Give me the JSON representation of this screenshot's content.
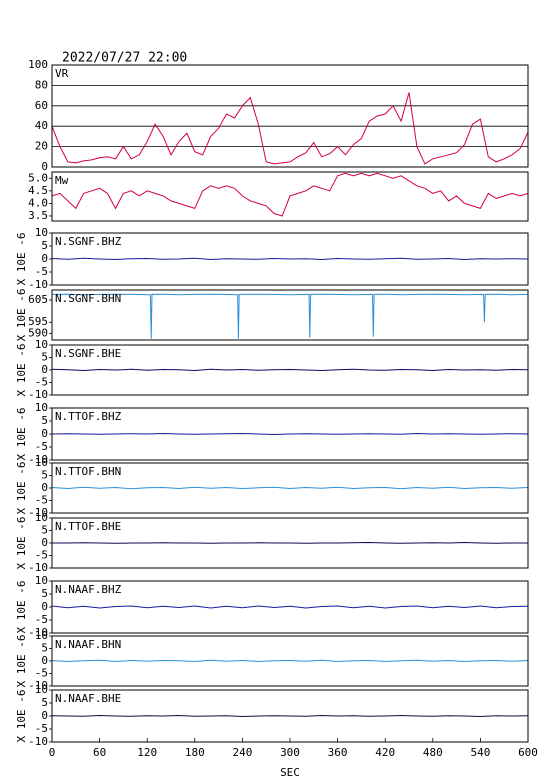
{
  "heading": "2022/07/27 22:00",
  "chart_data": [
    {
      "type": "line",
      "title": "VR",
      "xlim": [
        0,
        600
      ],
      "ylim": [
        0,
        100
      ],
      "yticks": [
        0,
        20,
        40,
        60,
        80,
        100
      ],
      "grid": true,
      "x": [
        0,
        10,
        20,
        30,
        40,
        50,
        60,
        70,
        80,
        90,
        100,
        110,
        120,
        130,
        140,
        150,
        160,
        170,
        180,
        190,
        200,
        210,
        220,
        230,
        240,
        250,
        260,
        270,
        280,
        290,
        300,
        310,
        320,
        330,
        340,
        350,
        360,
        370,
        380,
        390,
        400,
        410,
        420,
        430,
        440,
        450,
        460,
        470,
        480,
        490,
        500,
        510,
        520,
        530,
        540,
        550,
        560,
        570,
        580,
        590,
        600
      ],
      "series": [
        {
          "color": "#d4003c",
          "values": [
            40,
            20,
            5,
            4,
            6,
            7,
            9,
            10,
            8,
            20,
            8,
            12,
            25,
            42,
            30,
            12,
            25,
            33,
            15,
            12,
            30,
            38,
            52,
            48,
            60,
            68,
            42,
            5,
            3,
            4,
            5,
            10,
            14,
            24,
            10,
            13,
            20,
            12,
            22,
            28,
            45,
            50,
            52,
            60,
            45,
            73,
            20,
            3,
            8,
            10,
            12,
            14,
            22,
            42,
            47,
            10,
            5,
            8,
            12,
            18,
            34
          ]
        }
      ]
    },
    {
      "type": "line",
      "title": "Mw",
      "xlim": [
        0,
        600
      ],
      "ylim": [
        3.3,
        5.25
      ],
      "yticks": [
        {
          "value": 3.5,
          "label": "3.5"
        },
        {
          "value": 4,
          "label": "4.0"
        },
        {
          "value": 4.5,
          "label": "4.5"
        },
        {
          "value": 5,
          "label": "5.0"
        }
      ],
      "grid": false,
      "x": [
        0,
        10,
        20,
        30,
        40,
        50,
        60,
        70,
        80,
        90,
        100,
        110,
        120,
        130,
        140,
        150,
        160,
        170,
        180,
        190,
        200,
        210,
        220,
        230,
        240,
        250,
        260,
        270,
        280,
        290,
        300,
        310,
        320,
        330,
        340,
        350,
        360,
        370,
        380,
        390,
        400,
        410,
        420,
        430,
        440,
        450,
        460,
        470,
        480,
        490,
        500,
        510,
        520,
        530,
        540,
        550,
        560,
        570,
        580,
        590,
        600
      ],
      "series": [
        {
          "color": "#d4003c",
          "values": [
            4.3,
            4.4,
            4.1,
            3.8,
            4.4,
            4.5,
            4.6,
            4.4,
            3.8,
            4.4,
            4.5,
            4.3,
            4.5,
            4.4,
            4.3,
            4.1,
            4.0,
            3.9,
            3.8,
            4.5,
            4.7,
            4.6,
            4.7,
            4.6,
            4.3,
            4.1,
            4.0,
            3.9,
            3.6,
            3.5,
            4.3,
            4.4,
            4.5,
            4.7,
            4.6,
            4.5,
            5.1,
            5.2,
            5.1,
            5.2,
            5.1,
            5.2,
            5.1,
            5.0,
            5.1,
            4.9,
            4.7,
            4.6,
            4.4,
            4.5,
            4.1,
            4.3,
            4.0,
            3.9,
            3.8,
            4.4,
            4.2,
            4.3,
            4.4,
            4.3,
            4.4
          ]
        }
      ]
    },
    {
      "type": "line",
      "title": "N.SGNF.BHZ",
      "ylabel": "X 10E -6",
      "xlim": [
        0,
        600
      ],
      "ylim": [
        -10,
        10
      ],
      "yticks": [
        -10,
        -5,
        0,
        5,
        10
      ],
      "grid": false,
      "x": [
        0,
        20,
        40,
        60,
        80,
        100,
        120,
        140,
        160,
        180,
        200,
        220,
        240,
        260,
        280,
        300,
        320,
        340,
        360,
        380,
        400,
        420,
        440,
        460,
        480,
        500,
        520,
        540,
        560,
        580,
        600
      ],
      "series": [
        {
          "color": "#1a1aa0",
          "values": [
            0.2,
            -0.1,
            0.3,
            0,
            -0.2,
            0.1,
            0.2,
            -0.1,
            0,
            0.3,
            -0.2,
            0.1,
            0,
            -0.1,
            0.2,
            0,
            0.1,
            -0.2,
            0.2,
            0,
            -0.1,
            0.1,
            0.3,
            -0.1,
            0,
            0.2,
            -0.2,
            0.1,
            0,
            0.1,
            0
          ]
        }
      ]
    },
    {
      "type": "line",
      "title": "N.SGNF.BHN",
      "ylabel": "X 10E -6",
      "xlim": [
        0,
        600
      ],
      "ylim": [
        587,
        609.5
      ],
      "yticks": [
        590,
        595,
        605
      ],
      "grid": false,
      "x": [
        0,
        20,
        40,
        60,
        80,
        100,
        124,
        125,
        126,
        140,
        160,
        180,
        200,
        220,
        234,
        235,
        236,
        260,
        280,
        300,
        324,
        325,
        326,
        340,
        360,
        380,
        404,
        405,
        406,
        420,
        440,
        460,
        480,
        500,
        520,
        544,
        545,
        546,
        560,
        580,
        600
      ],
      "series": [
        {
          "color": "#2d8fd8",
          "values": [
            607.5,
            607.6,
            607.4,
            607.5,
            607.6,
            607.5,
            607.4,
            587.5,
            607.5,
            607.6,
            607.4,
            607.5,
            607.6,
            607.5,
            607.4,
            587.6,
            607.5,
            607.6,
            607.5,
            607.4,
            607.5,
            588,
            607.5,
            607.6,
            607.5,
            607.4,
            607.5,
            588.5,
            607.5,
            607.6,
            607.4,
            607.5,
            607.6,
            607.5,
            607.4,
            607.5,
            595,
            607.5,
            607.6,
            607.4,
            607.5
          ]
        }
      ]
    },
    {
      "type": "line",
      "title": "N.SGNF.BHE",
      "ylabel": "X 10E -6",
      "xlim": [
        0,
        600
      ],
      "ylim": [
        -10,
        10
      ],
      "yticks": [
        -10,
        -5,
        0,
        5,
        10
      ],
      "grid": false,
      "x": [
        0,
        20,
        40,
        60,
        80,
        100,
        120,
        140,
        160,
        180,
        200,
        220,
        240,
        260,
        280,
        300,
        320,
        340,
        360,
        380,
        400,
        420,
        440,
        460,
        480,
        500,
        520,
        540,
        560,
        580,
        600
      ],
      "series": [
        {
          "color": "#0a0a70",
          "values": [
            0.3,
            0.1,
            -0.2,
            0.2,
            0,
            0.3,
            -0.1,
            0.2,
            0.1,
            -0.2,
            0.3,
            0,
            0.2,
            -0.1,
            0.1,
            0.2,
            0,
            -0.2,
            0.1,
            0.3,
            0,
            -0.1,
            0.2,
            0.1,
            -0.2,
            0.2,
            0,
            0.1,
            -0.1,
            0.2,
            0.1
          ]
        }
      ]
    },
    {
      "type": "line",
      "title": "N.TTOF.BHZ",
      "ylabel": "X 10E -6",
      "xlim": [
        0,
        600
      ],
      "ylim": [
        -10,
        10
      ],
      "yticks": [
        -10,
        -5,
        0,
        5,
        10
      ],
      "grid": false,
      "x": [
        0,
        20,
        40,
        60,
        80,
        100,
        120,
        140,
        160,
        180,
        200,
        220,
        240,
        260,
        280,
        300,
        320,
        340,
        360,
        380,
        400,
        420,
        440,
        460,
        480,
        500,
        520,
        540,
        560,
        580,
        600
      ],
      "series": [
        {
          "color": "#1a1aa0",
          "values": [
            0,
            0.1,
            0,
            -0.1,
            0,
            0.1,
            0,
            0.2,
            0,
            -0.1,
            0,
            0.1,
            0.2,
            0,
            -0.2,
            0,
            0.1,
            0,
            -0.1,
            0,
            0.1,
            0,
            -0.1,
            0.2,
            0,
            0.1,
            0,
            -0.1,
            0,
            0.1,
            0
          ]
        }
      ]
    },
    {
      "type": "line",
      "title": "N.TTOF.BHN",
      "ylabel": "X 10E -6",
      "xlim": [
        0,
        600
      ],
      "ylim": [
        -10,
        10
      ],
      "yticks": [
        -10,
        -5,
        0,
        5,
        10
      ],
      "grid": false,
      "x": [
        0,
        20,
        40,
        60,
        80,
        100,
        120,
        140,
        160,
        180,
        200,
        220,
        240,
        260,
        280,
        300,
        320,
        340,
        360,
        380,
        400,
        420,
        440,
        460,
        480,
        500,
        520,
        540,
        560,
        580,
        600
      ],
      "series": [
        {
          "color": "#2d8fd8",
          "values": [
            0.2,
            -0.2,
            0.3,
            -0.1,
            0.2,
            -0.3,
            0.1,
            0.2,
            -0.2,
            0.3,
            -0.1,
            0.2,
            -0.2,
            0.1,
            0.3,
            -0.2,
            0.2,
            -0.1,
            0.3,
            -0.2,
            0.1,
            0.2,
            -0.3,
            0.2,
            -0.1,
            0.3,
            -0.2,
            0.1,
            0.2,
            -0.1,
            0.2
          ]
        }
      ]
    },
    {
      "type": "line",
      "title": "N.TTOF.BHE",
      "ylabel": "X 10E -6",
      "xlim": [
        0,
        600
      ],
      "ylim": [
        -10,
        10
      ],
      "yticks": [
        -10,
        -5,
        0,
        5,
        10
      ],
      "grid": false,
      "x": [
        0,
        20,
        40,
        60,
        80,
        100,
        120,
        140,
        160,
        180,
        200,
        220,
        240,
        260,
        280,
        300,
        320,
        340,
        360,
        380,
        400,
        420,
        440,
        460,
        480,
        500,
        520,
        540,
        560,
        580,
        600
      ],
      "series": [
        {
          "color": "#0a0a50",
          "values": [
            0,
            0,
            0.1,
            0,
            -0.1,
            0,
            0,
            0.1,
            0,
            0,
            -0.1,
            0,
            0,
            0.1,
            0,
            0,
            -0.1,
            0,
            0,
            0.1,
            0.2,
            0,
            -0.1,
            0,
            0.1,
            0,
            0.2,
            0,
            -0.1,
            0,
            0
          ]
        }
      ]
    },
    {
      "type": "line",
      "title": "N.NAAF.BHZ",
      "ylabel": "X 10E -6",
      "xlim": [
        0,
        600
      ],
      "ylim": [
        -10,
        10
      ],
      "yticks": [
        -10,
        -5,
        0,
        5,
        10
      ],
      "grid": false,
      "x": [
        0,
        20,
        40,
        60,
        80,
        100,
        120,
        140,
        160,
        180,
        200,
        220,
        240,
        260,
        280,
        300,
        320,
        340,
        360,
        380,
        400,
        420,
        440,
        460,
        480,
        500,
        520,
        540,
        560,
        580,
        600
      ],
      "series": [
        {
          "color": "#1a1aa0",
          "values": [
            0.4,
            -0.3,
            0.3,
            -0.4,
            0.2,
            0.4,
            -0.3,
            0.3,
            -0.2,
            0.4,
            -0.4,
            0.3,
            -0.3,
            0.4,
            -0.2,
            0.3,
            -0.4,
            0.2,
            0.4,
            -0.3,
            0.3,
            -0.4,
            0.2,
            0.4,
            -0.3,
            0.3,
            -0.2,
            0.4,
            -0.3,
            0.2,
            0.3
          ]
        }
      ]
    },
    {
      "type": "line",
      "title": "N.NAAF.BHN",
      "ylabel": "X 10E -6",
      "xlim": [
        0,
        600
      ],
      "ylim": [
        -10,
        10
      ],
      "yticks": [
        -10,
        -5,
        0,
        5,
        10
      ],
      "grid": false,
      "x": [
        0,
        20,
        40,
        60,
        80,
        100,
        120,
        140,
        160,
        180,
        200,
        220,
        240,
        260,
        280,
        300,
        320,
        340,
        360,
        380,
        400,
        420,
        440,
        460,
        480,
        500,
        520,
        540,
        560,
        580,
        600
      ],
      "series": [
        {
          "color": "#2d8fd8",
          "values": [
            0.2,
            -0.2,
            0.1,
            0.3,
            -0.2,
            0.2,
            -0.1,
            0.2,
            0.1,
            -0.2,
            0.3,
            -0.1,
            0.2,
            -0.2,
            0.1,
            0.2,
            -0.1,
            0.3,
            -0.2,
            0.1,
            0.2,
            -0.2,
            0.1,
            0.3,
            -0.1,
            0.2,
            -0.2,
            0.1,
            0.2,
            -0.1,
            0.2
          ]
        }
      ]
    },
    {
      "type": "line",
      "title": "N.NAAF.BHE",
      "ylabel": "X 10E -6",
      "xlim": [
        0,
        600
      ],
      "ylim": [
        -10,
        10
      ],
      "yticks": [
        -10,
        -5,
        0,
        5,
        10
      ],
      "grid": false,
      "xticks": [
        0,
        60,
        120,
        180,
        240,
        300,
        360,
        420,
        480,
        540,
        600
      ],
      "xlabel": "SEC",
      "x": [
        0,
        20,
        40,
        60,
        80,
        100,
        120,
        140,
        160,
        180,
        200,
        220,
        240,
        260,
        280,
        300,
        320,
        340,
        360,
        380,
        400,
        420,
        440,
        460,
        480,
        500,
        520,
        540,
        560,
        580,
        600
      ],
      "series": [
        {
          "color": "#101030",
          "values": [
            0.1,
            0,
            -0.1,
            0.2,
            0,
            -0.1,
            0.1,
            0,
            0.2,
            -0.1,
            0,
            0.1,
            -0.2,
            0,
            0.1,
            0,
            -0.1,
            0.2,
            0,
            0.1,
            -0.1,
            0,
            0.2,
            0,
            -0.1,
            0.1,
            0,
            -0.2,
            0.1,
            0,
            0.1
          ]
        }
      ]
    }
  ]
}
